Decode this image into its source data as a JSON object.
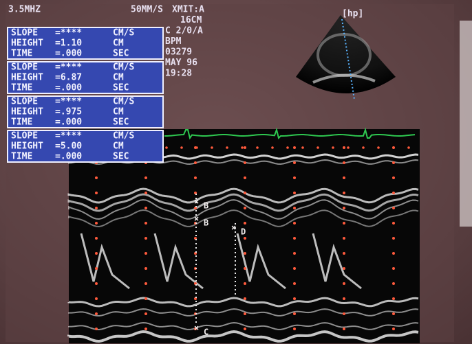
{
  "header": {
    "probe": "3.5MHZ",
    "sweep": "50MM/S",
    "info": [
      "XMIT:A",
      "16CM",
      "C 2/0/A",
      "BPM",
      "03279",
      "MAY 96",
      "19:28"
    ]
  },
  "sector_label": "[hp]",
  "measurements": [
    [
      [
        "SLOPE",
        "=****",
        "CM/S"
      ],
      [
        "HEIGHT",
        "=1.10",
        "CM"
      ],
      [
        "TIME",
        "=.000",
        "SEC"
      ]
    ],
    [
      [
        "SLOPE",
        "=****",
        "CM/S"
      ],
      [
        "HEIGHT",
        "=6.87",
        "CM"
      ],
      [
        "TIME",
        "=.000",
        "SEC"
      ]
    ],
    [
      [
        "SLOPE",
        "=****",
        "CM/S"
      ],
      [
        "HEIGHT",
        "=.975",
        "CM"
      ],
      [
        "TIME",
        "=.000",
        "SEC"
      ]
    ],
    [
      [
        "SLOPE",
        "=****",
        "CM/S"
      ],
      [
        "HEIGHT",
        "=5.00",
        "CM"
      ],
      [
        "TIME",
        "=.000",
        "SEC"
      ]
    ]
  ],
  "markers": [
    "B",
    "B",
    "D",
    "C"
  ]
}
